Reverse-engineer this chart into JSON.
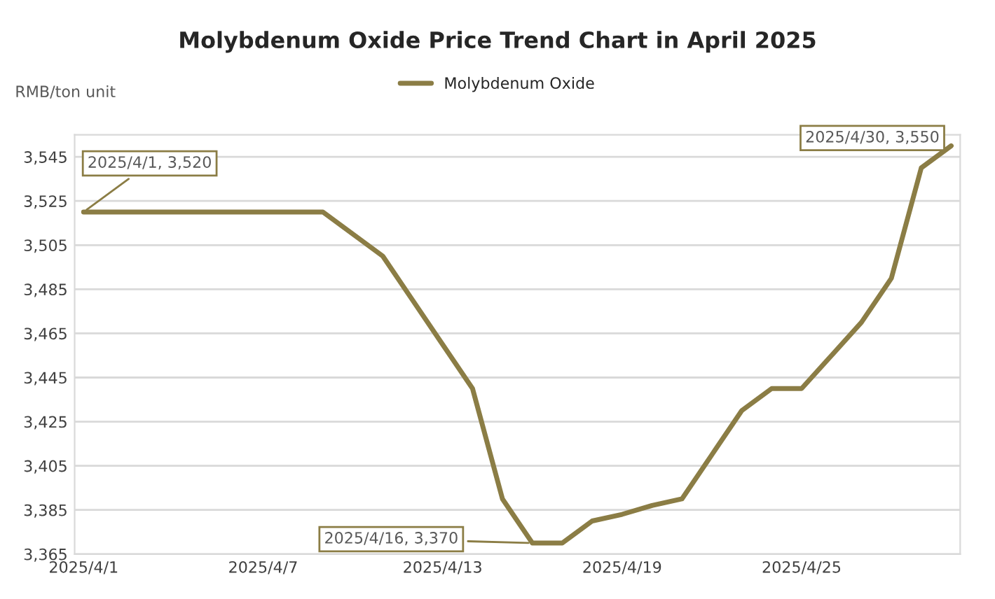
{
  "chart_data": {
    "type": "line",
    "title": "Molybdenum Oxide Price Trend Chart in April 2025",
    "ylabel": "RMB/ton unit",
    "categories": [
      "2025/4/1",
      null,
      null,
      null,
      null,
      null,
      "2025/4/7",
      null,
      null,
      null,
      null,
      null,
      "2025/4/13",
      null,
      null,
      null,
      null,
      null,
      "2025/4/19",
      null,
      null,
      null,
      null,
      null,
      "2025/4/25",
      null,
      null,
      null,
      null,
      null
    ],
    "series": [
      {
        "name": "Molybdenum Oxide",
        "color": "#8b7d45",
        "values": [
          3520,
          3520,
          3520,
          3520,
          3520,
          3520,
          3520,
          3520,
          3520,
          3510,
          3500,
          3480,
          3460,
          3440,
          3390,
          3370,
          3370,
          3380,
          3383,
          3387,
          3390,
          3410,
          3430,
          3440,
          3440,
          3455,
          3470,
          3490,
          3540,
          3550
        ]
      }
    ],
    "ylim": [
      3365,
      3555
    ],
    "yticks": [
      {
        "value": 3365,
        "label": "3,365"
      },
      {
        "value": 3385,
        "label": "3,385"
      },
      {
        "value": 3405,
        "label": "3,405"
      },
      {
        "value": 3425,
        "label": "3,425"
      },
      {
        "value": 3445,
        "label": "3,445"
      },
      {
        "value": 3465,
        "label": "3,465"
      },
      {
        "value": 3485,
        "label": "3,485"
      },
      {
        "value": 3505,
        "label": "3,505"
      },
      {
        "value": 3525,
        "label": "3,525"
      },
      {
        "value": 3545,
        "label": "3,545"
      }
    ],
    "annotations": [
      {
        "text": "2025/4/1, 3,520",
        "x": "2025/4/1",
        "y": 3520
      },
      "2025/4/16, 3,370",
      "2025/4/30, 3,550"
    ],
    "grid": "y",
    "legend": "top",
    "marker": "none",
    "line_style": "solid"
  }
}
